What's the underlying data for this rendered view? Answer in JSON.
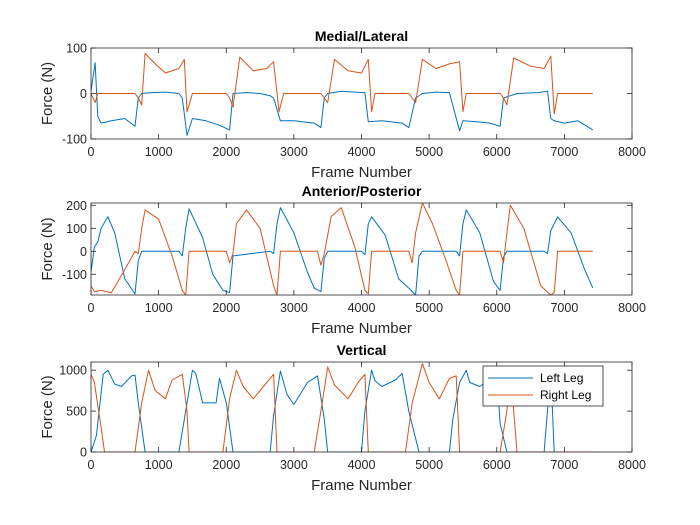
{
  "colors": {
    "left": "#0072BD",
    "right": "#D95319",
    "axis": "#262626"
  },
  "chart_data": [
    {
      "type": "line",
      "title": "Medial/Lateral",
      "xlabel": "Frame Number",
      "ylabel": "Force (N)",
      "xlim": [
        0,
        8000
      ],
      "ylim": [
        -100,
        100
      ],
      "xticks": [
        0,
        1000,
        2000,
        3000,
        4000,
        5000,
        6000,
        7000,
        8000
      ],
      "yticks": [
        -100,
        0,
        100
      ],
      "series": [
        {
          "name": "Left Leg",
          "x": [
            0,
            60,
            100,
            150,
            300,
            500,
            650,
            700,
            750,
            900,
            1100,
            1300,
            1350,
            1420,
            1500,
            1700,
            1900,
            2050,
            2100,
            2300,
            2500,
            2650,
            2700,
            2800,
            3000,
            3300,
            3400,
            3450,
            3500,
            3700,
            3900,
            4050,
            4100,
            4300,
            4600,
            4700,
            4800,
            4900,
            5100,
            5300,
            5450,
            5500,
            5700,
            5900,
            6050,
            6100,
            6300,
            6600,
            6750,
            6800,
            6850,
            7000,
            7200,
            7420
          ],
          "y": [
            5,
            68,
            -50,
            -65,
            -60,
            -55,
            -72,
            -10,
            0,
            2,
            3,
            0,
            -10,
            -92,
            -55,
            -60,
            -70,
            -80,
            0,
            2,
            0,
            -5,
            -10,
            -60,
            -60,
            -65,
            -75,
            -10,
            0,
            5,
            3,
            2,
            -62,
            -60,
            -65,
            -75,
            -10,
            0,
            3,
            2,
            -82,
            -60,
            -62,
            -65,
            -72,
            -10,
            0,
            2,
            5,
            -55,
            -60,
            -65,
            -60,
            -80
          ]
        },
        {
          "name": "Right Leg",
          "x": [
            0,
            60,
            100,
            150,
            650,
            700,
            750,
            800,
            950,
            1100,
            1300,
            1380,
            1420,
            1500,
            2000,
            2050,
            2100,
            2200,
            2400,
            2600,
            2700,
            2780,
            2850,
            3400,
            3450,
            3500,
            3600,
            3800,
            4000,
            4100,
            4150,
            4200,
            4700,
            4750,
            4800,
            4900,
            5100,
            5300,
            5450,
            5500,
            5550,
            6050,
            6100,
            6150,
            6250,
            6500,
            6700,
            6800,
            6850,
            6900,
            7420
          ],
          "y": [
            0,
            -20,
            0,
            0,
            0,
            -10,
            -25,
            88,
            65,
            45,
            55,
            75,
            -40,
            0,
            0,
            -10,
            -30,
            80,
            50,
            55,
            70,
            -40,
            0,
            0,
            -10,
            -20,
            75,
            50,
            45,
            75,
            -40,
            0,
            0,
            -10,
            -20,
            75,
            55,
            65,
            70,
            -40,
            0,
            0,
            -10,
            -25,
            78,
            60,
            55,
            82,
            -45,
            0,
            0
          ]
        }
      ]
    },
    {
      "type": "line",
      "title": "Anterior/Posterior",
      "xlabel": "Frame Number",
      "ylabel": "Force (N)",
      "xlim": [
        0,
        8000
      ],
      "ylim": [
        -190,
        210
      ],
      "xticks": [
        0,
        1000,
        2000,
        3000,
        4000,
        5000,
        6000,
        7000,
        8000
      ],
      "yticks": [
        -100,
        0,
        100,
        200
      ],
      "series": [
        {
          "name": "Left Leg",
          "x": [
            0,
            50,
            100,
            150,
            250,
            350,
            500,
            650,
            700,
            750,
            1300,
            1350,
            1400,
            1450,
            1650,
            1800,
            1950,
            2050,
            2100,
            2650,
            2700,
            2750,
            2800,
            3000,
            3200,
            3300,
            3400,
            3450,
            3500,
            4000,
            4050,
            4100,
            4150,
            4350,
            4550,
            4700,
            4800,
            4850,
            4900,
            5400,
            5450,
            5500,
            5550,
            5750,
            5950,
            6050,
            6100,
            6150,
            6700,
            6750,
            6800,
            6900,
            7100,
            7300,
            7420
          ],
          "y": [
            -90,
            20,
            40,
            100,
            150,
            80,
            -120,
            -185,
            -40,
            0,
            0,
            -20,
            100,
            185,
            60,
            -100,
            -170,
            -180,
            -20,
            0,
            -10,
            120,
            190,
            80,
            -90,
            -160,
            -175,
            -30,
            0,
            0,
            -15,
            120,
            150,
            70,
            -120,
            -160,
            -190,
            -20,
            0,
            0,
            -20,
            120,
            180,
            80,
            -130,
            -170,
            -25,
            0,
            0,
            -10,
            90,
            150,
            80,
            -80,
            -160
          ]
        },
        {
          "name": "Right Leg",
          "x": [
            0,
            50,
            150,
            300,
            500,
            650,
            700,
            750,
            800,
            1000,
            1200,
            1350,
            1400,
            1450,
            2000,
            2050,
            2100,
            2150,
            2300,
            2500,
            2700,
            2750,
            2800,
            3350,
            3400,
            3450,
            3550,
            3700,
            3900,
            4050,
            4100,
            4150,
            4700,
            4750,
            4800,
            4900,
            5050,
            5250,
            5400,
            5450,
            5500,
            6050,
            6100,
            6150,
            6200,
            6400,
            6650,
            6800,
            6850,
            6900,
            7420
          ],
          "y": [
            -150,
            -175,
            -170,
            -180,
            -80,
            0,
            -10,
            100,
            180,
            140,
            -20,
            -170,
            -190,
            0,
            0,
            -50,
            -10,
            120,
            180,
            100,
            -150,
            -190,
            0,
            0,
            -60,
            -10,
            150,
            190,
            20,
            -170,
            -185,
            0,
            0,
            -50,
            80,
            210,
            120,
            -40,
            -170,
            -190,
            0,
            0,
            -50,
            80,
            200,
            100,
            -150,
            -190,
            -180,
            0,
            0
          ]
        }
      ]
    },
    {
      "type": "line",
      "title": "Vertical",
      "xlabel": "Frame Number",
      "ylabel": "Force (N)",
      "xlim": [
        0,
        8000
      ],
      "ylim": [
        0,
        1100
      ],
      "xticks": [
        0,
        1000,
        2000,
        3000,
        4000,
        5000,
        6000,
        7000,
        8000
      ],
      "yticks": [
        0,
        500,
        1000
      ],
      "legend": {
        "location": "top-right",
        "entries": [
          "Left Leg",
          "Right Leg"
        ]
      },
      "series": [
        {
          "name": "Left Leg",
          "x": [
            0,
            80,
            180,
            250,
            350,
            450,
            600,
            650,
            700,
            800,
            1300,
            1400,
            1500,
            1550,
            1650,
            1850,
            1900,
            2000,
            2100,
            2650,
            2700,
            2800,
            2900,
            3000,
            3200,
            3350,
            3450,
            3500,
            4000,
            4050,
            4150,
            4200,
            4300,
            4500,
            4600,
            4700,
            4850,
            5300,
            5350,
            5450,
            5550,
            5600,
            5750,
            6000,
            6050,
            6150,
            6700,
            6800,
            6850,
            7420
          ],
          "y": [
            0,
            200,
            950,
            1000,
            830,
            800,
            930,
            940,
            600,
            0,
            0,
            500,
            1000,
            960,
            600,
            600,
            900,
            600,
            0,
            0,
            450,
            990,
            700,
            580,
            850,
            930,
            400,
            0,
            0,
            500,
            1000,
            870,
            800,
            880,
            960,
            500,
            0,
            0,
            400,
            850,
            1000,
            850,
            800,
            950,
            350,
            0,
            0,
            1000,
            0,
            0
          ]
        },
        {
          "name": "Right Leg",
          "x": [
            0,
            50,
            150,
            200,
            650,
            750,
            850,
            950,
            1100,
            1200,
            1350,
            1420,
            1450,
            1950,
            2050,
            2150,
            2250,
            2400,
            2600,
            2700,
            2750,
            3300,
            3400,
            3500,
            3600,
            3800,
            3950,
            4050,
            4100,
            4650,
            4750,
            4900,
            5000,
            5150,
            5300,
            5400,
            5450,
            6050,
            6150,
            6200,
            6250,
            6300,
            7420
          ],
          "y": [
            950,
            850,
            300,
            0,
            0,
            600,
            1000,
            750,
            650,
            880,
            950,
            500,
            0,
            0,
            650,
            1000,
            800,
            650,
            850,
            950,
            0,
            0,
            500,
            1040,
            820,
            650,
            850,
            950,
            0,
            0,
            600,
            1080,
            850,
            650,
            900,
            930,
            0,
            0,
            500,
            1050,
            500,
            0,
            0
          ]
        }
      ]
    }
  ]
}
